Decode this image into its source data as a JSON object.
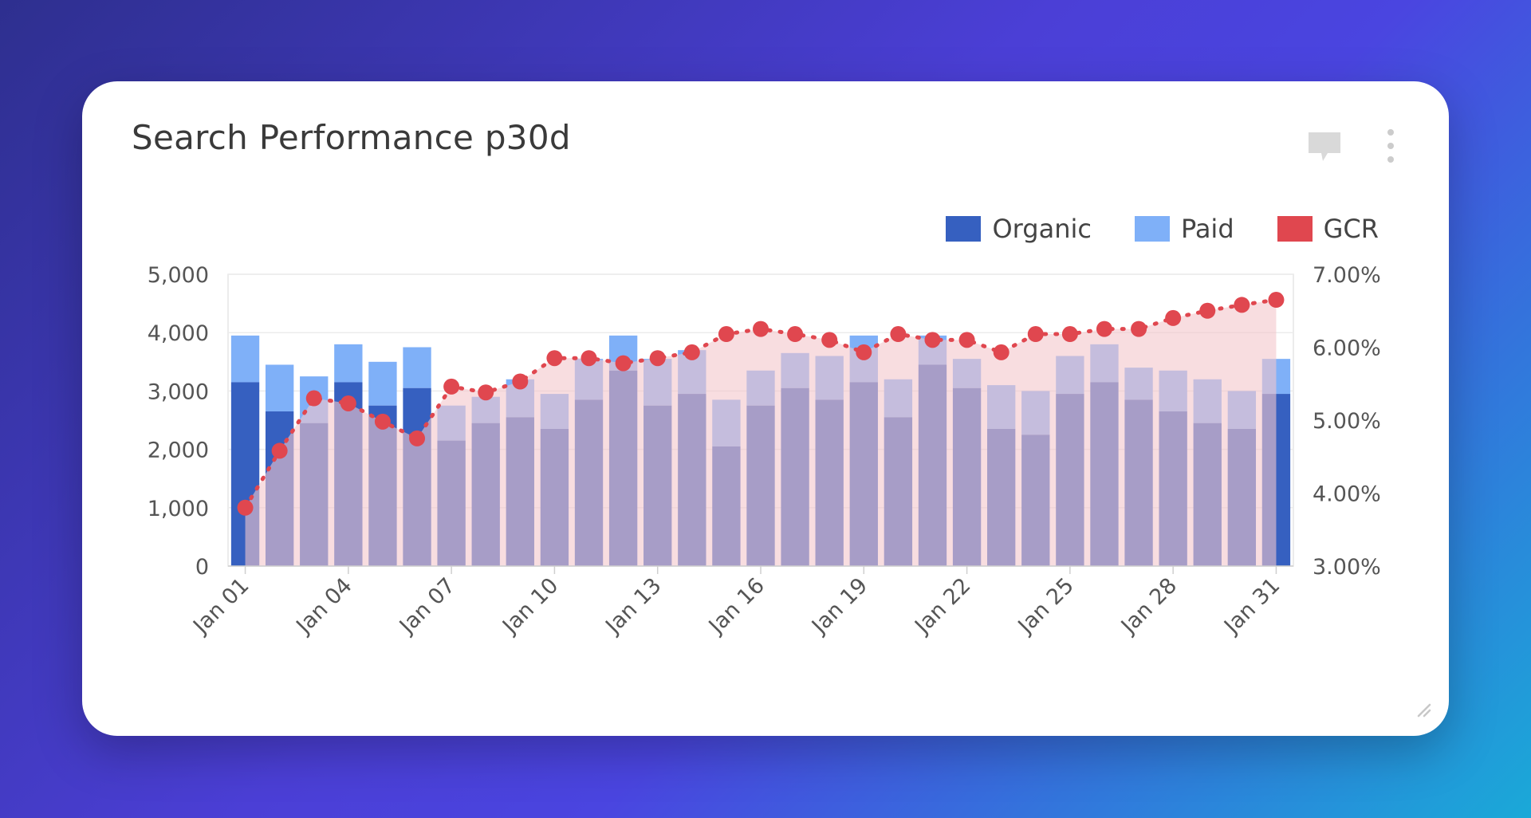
{
  "card": {
    "title": "Search Performance p30d"
  },
  "icons": {
    "comment": "comment-icon",
    "more": "more-vertical-icon",
    "resize": "resize-handle-icon"
  },
  "colors": {
    "organic": "#3660c0",
    "paid": "#7fb0f8",
    "gcr": "#e0474f",
    "gcr_fill": "#f3c7cb"
  },
  "chart_data": {
    "type": "bar",
    "categories": [
      "Jan 01",
      "Jan 02",
      "Jan 03",
      "Jan 04",
      "Jan 05",
      "Jan 06",
      "Jan 07",
      "Jan 08",
      "Jan 09",
      "Jan 10",
      "Jan 11",
      "Jan 12",
      "Jan 13",
      "Jan 14",
      "Jan 15",
      "Jan 16",
      "Jan 17",
      "Jan 18",
      "Jan 19",
      "Jan 20",
      "Jan 21",
      "Jan 22",
      "Jan 23",
      "Jan 24",
      "Jan 25",
      "Jan 26",
      "Jan 27",
      "Jan 28",
      "Jan 29",
      "Jan 30",
      "Jan 31"
    ],
    "xtick_labels": [
      "Jan 01",
      "Jan 04",
      "Jan 07",
      "Jan 10",
      "Jan 13",
      "Jan 16",
      "Jan 19",
      "Jan 22",
      "Jan 25",
      "Jan 28",
      "Jan 31"
    ],
    "series": [
      {
        "name": "Organic",
        "type": "bar",
        "axis": "left",
        "values": [
          3150,
          2650,
          2450,
          3150,
          2750,
          3050,
          2150,
          2450,
          2550,
          2350,
          2850,
          3350,
          2750,
          2950,
          2050,
          2750,
          3050,
          2850,
          3150,
          2550,
          3450,
          3050,
          2350,
          2250,
          2950,
          3150,
          2850,
          2650,
          2450,
          2350,
          2950
        ]
      },
      {
        "name": "Paid",
        "type": "bar",
        "axis": "left",
        "values": [
          800,
          800,
          800,
          650,
          750,
          700,
          600,
          450,
          650,
          600,
          700,
          600,
          800,
          750,
          800,
          600,
          600,
          750,
          800,
          650,
          500,
          500,
          750,
          750,
          650,
          650,
          550,
          700,
          750,
          650,
          600
        ]
      },
      {
        "name": "GCR",
        "type": "line",
        "axis": "right",
        "values": [
          3.8,
          4.58,
          5.3,
          5.23,
          4.98,
          4.75,
          5.46,
          5.38,
          5.53,
          5.85,
          5.85,
          5.78,
          5.85,
          5.93,
          6.18,
          6.25,
          6.18,
          6.1,
          5.93,
          6.18,
          6.1,
          6.1,
          5.93,
          6.18,
          6.18,
          6.25,
          6.25,
          6.4,
          6.5,
          6.58,
          6.65
        ]
      }
    ],
    "y_left": {
      "min": 0,
      "max": 5000,
      "ticks": [
        "0",
        "1,000",
        "2,000",
        "3,000",
        "4,000",
        "5,000"
      ]
    },
    "y_right": {
      "min": 3.0,
      "max": 7.0,
      "ticks": [
        "3.00%",
        "4.00%",
        "5.00%",
        "6.00%",
        "7.00%"
      ]
    },
    "legend": {
      "position": "top-right",
      "entries": [
        "Organic",
        "Paid",
        "GCR"
      ]
    },
    "grid": true
  }
}
